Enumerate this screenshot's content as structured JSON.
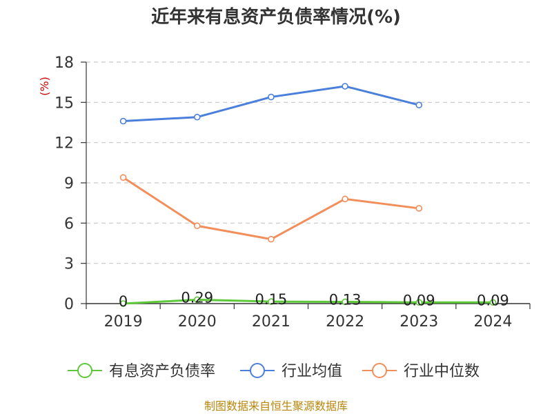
{
  "chart_data": {
    "type": "line",
    "title": "近年来有息资产负债率情况(%)",
    "ylabel": "(%)",
    "xlabel": "",
    "categories": [
      "2019",
      "2020",
      "2021",
      "2022",
      "2023",
      "2024"
    ],
    "ylim": [
      0,
      18
    ],
    "yticks": [
      0,
      3,
      6,
      9,
      12,
      15,
      18
    ],
    "grid": true,
    "legend_position": "bottom",
    "series": [
      {
        "name": "有息资产负债率",
        "color": "#5dc93a",
        "values": [
          0,
          0.29,
          0.15,
          0.13,
          0.09,
          0.09
        ],
        "data_labels": [
          "0",
          "0.29",
          "0.15",
          "0.13",
          "0.09",
          "0.09"
        ]
      },
      {
        "name": "行业均值",
        "color": "#4a7fdb",
        "values": [
          13.6,
          13.9,
          15.4,
          16.2,
          14.8,
          null
        ]
      },
      {
        "name": "行业中位数",
        "color": "#f28e5a",
        "values": [
          9.4,
          5.8,
          4.8,
          7.8,
          7.1,
          null
        ]
      }
    ]
  },
  "footer": {
    "source": "制图数据来自恒生聚源数据库"
  }
}
